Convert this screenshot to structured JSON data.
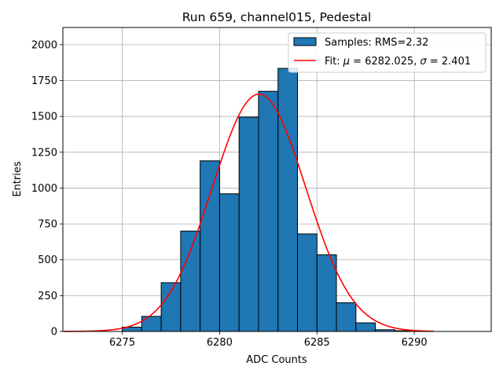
{
  "chart_data": {
    "type": "bar",
    "title": "Run 659, channel015, Pedestal",
    "xlabel": "ADC Counts",
    "ylabel": "Entries",
    "xlim": [
      6271.95,
      6293.95
    ],
    "ylim": [
      0,
      2120
    ],
    "grid": true,
    "legend_position": "top-right",
    "colors": {
      "bars": "#1f77b4",
      "edge": "#000000",
      "fit": "#ff0000"
    },
    "x_ticks": [
      6275,
      6280,
      6285,
      6290
    ],
    "y_ticks": [
      0,
      250,
      500,
      750,
      1000,
      1250,
      1500,
      1750,
      2000
    ],
    "histogram": {
      "name": "Samples: RMS=2.32",
      "bin_edges": [
        6275,
        6276,
        6277,
        6278,
        6279,
        6280,
        6281,
        6282,
        6283,
        6284,
        6285,
        6286,
        6287,
        6288,
        6289,
        6290
      ],
      "counts": [
        30,
        105,
        340,
        700,
        1190,
        960,
        1495,
        1675,
        1835,
        680,
        535,
        200,
        60,
        12,
        5
      ]
    },
    "fit": {
      "name": "Fit: μ = 6282.025, σ = 2.401",
      "label_prefix": "Fit: ",
      "mu_symbol": "μ",
      "mu_text": " = 6282.025, ",
      "sigma_symbol": "σ",
      "sigma_text": " = 2.401",
      "mu": 6282.025,
      "sigma": 2.401,
      "amplitude": 1655,
      "x_range": [
        6272,
        6291
      ]
    }
  }
}
